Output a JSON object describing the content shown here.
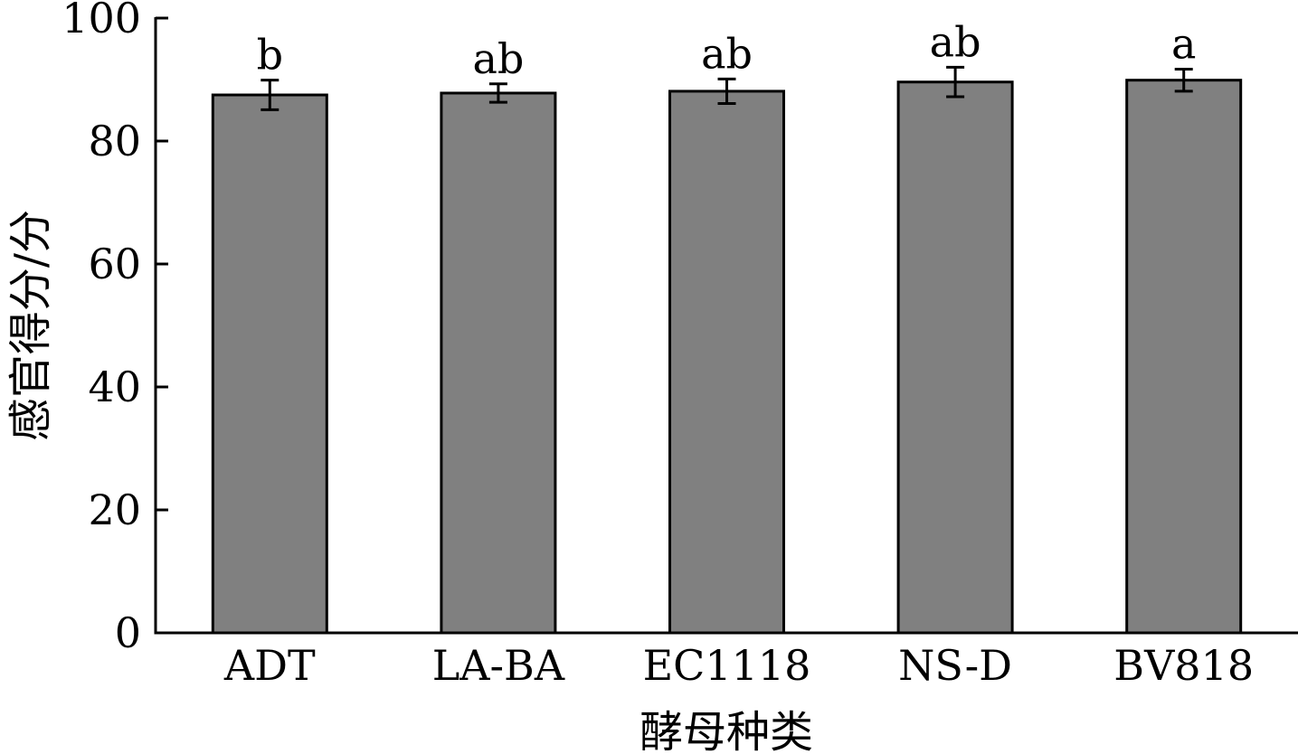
{
  "chart_data": {
    "type": "bar",
    "title": "",
    "xlabel": "酵母种类",
    "ylabel": "感官得分/分",
    "categories": [
      "ADT",
      "LA-BA",
      "EC1118",
      "NS-D",
      "BV818"
    ],
    "values": [
      87.5,
      87.8,
      88.1,
      89.6,
      89.9
    ],
    "errors": [
      2.4,
      1.5,
      2.0,
      2.4,
      1.8
    ],
    "significance": [
      "b",
      "ab",
      "ab",
      "ab",
      "a"
    ],
    "ylim": [
      0,
      100
    ],
    "yticks": [
      0,
      20,
      40,
      60,
      80,
      100
    ],
    "grid": false,
    "legend": "none",
    "bar_color": "#808080",
    "edge_color": "#000000"
  }
}
